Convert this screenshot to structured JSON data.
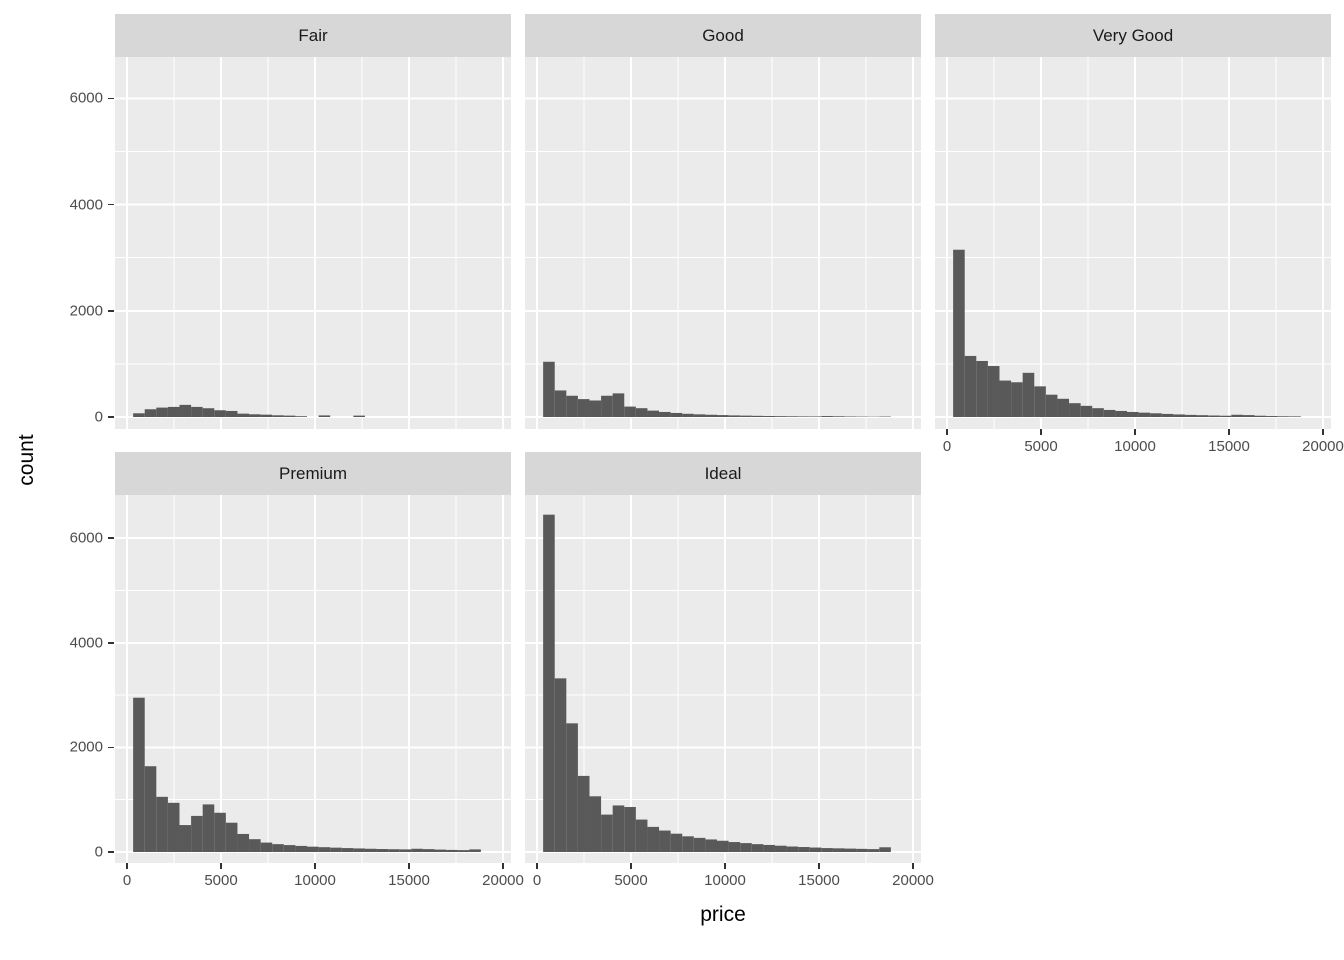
{
  "style": {
    "page_bg": "#FFFFFF",
    "panel_bg": "#EBEBEB",
    "strip_bg": "#D7D7D7",
    "strip_text_color": "#1A1A1A",
    "bar_color": "#595959",
    "gridline_color": "#FFFFFF",
    "tick_label_color": "#4D4D4D",
    "tick_mark_color": "#333333",
    "axis_title_color": "#000000"
  },
  "chart_data": {
    "type": "bar",
    "subtype": "faceted-histogram",
    "title": "",
    "xlabel": "price",
    "ylabel": "count",
    "facet_variable": "cut",
    "facet_order": [
      "Fair",
      "Good",
      "Very Good",
      "Premium",
      "Ideal"
    ],
    "grid": true,
    "legend_position": "none",
    "bin_start": 326,
    "bin_width": 616.57,
    "n_bins": 30,
    "xlim": [
      0,
      20000
    ],
    "ylim": [
      0,
      6750
    ],
    "x_major_ticks": [
      0,
      5000,
      10000,
      15000,
      20000
    ],
    "x_tick_labels": [
      "0",
      "5000",
      "10000",
      "15000",
      "20000"
    ],
    "x_minor_gridlines": [
      2500,
      7500,
      12500,
      17500
    ],
    "y_major_ticks": [
      0,
      2000,
      4000,
      6000
    ],
    "y_tick_labels": [
      "0",
      "2000",
      "4000",
      "6000"
    ],
    "y_minor_gridlines": [
      1000,
      3000,
      5000
    ],
    "facets": [
      {
        "label": "Fair",
        "row": 0,
        "col": 0,
        "x_axis_shown": false,
        "counts": [
          70,
          146,
          177,
          190,
          228,
          190,
          165,
          127,
          114,
          63,
          51,
          44,
          32,
          26,
          15,
          0,
          30,
          0,
          0,
          26,
          0,
          0,
          0,
          0,
          0,
          0,
          0,
          0,
          0,
          0
        ]
      },
      {
        "label": "Good",
        "row": 0,
        "col": 1,
        "x_axis_shown": false,
        "counts": [
          1040,
          500,
          400,
          337,
          311,
          400,
          445,
          196,
          166,
          120,
          95,
          76,
          60,
          50,
          42,
          36,
          30,
          26,
          22,
          19,
          16,
          14,
          12,
          11,
          18,
          14,
          10,
          8,
          6,
          9
        ]
      },
      {
        "label": "Very Good",
        "row": 0,
        "col": 2,
        "x_axis_shown": true,
        "counts": [
          3150,
          1150,
          1055,
          960,
          686,
          654,
          832,
          577,
          420,
          343,
          260,
          210,
          166,
          133,
          114,
          95,
          82,
          70,
          58,
          48,
          40,
          34,
          28,
          24,
          42,
          36,
          24,
          18,
          14,
          12
        ]
      },
      {
        "label": "Premium",
        "row": 1,
        "col": 0,
        "x_axis_shown": true,
        "counts": [
          2950,
          1640,
          1055,
          940,
          515,
          690,
          910,
          750,
          560,
          345,
          245,
          180,
          150,
          132,
          116,
          102,
          92,
          83,
          75,
          68,
          62,
          57,
          53,
          50,
          62,
          55,
          46,
          40,
          36,
          50
        ]
      },
      {
        "label": "Ideal",
        "row": 1,
        "col": 1,
        "x_axis_shown": true,
        "counts": [
          6450,
          3320,
          2460,
          1455,
          1065,
          715,
          890,
          860,
          620,
          480,
          410,
          350,
          300,
          270,
          240,
          215,
          190,
          170,
          150,
          135,
          120,
          105,
          95,
          85,
          75,
          70,
          65,
          60,
          55,
          90
        ]
      }
    ]
  }
}
